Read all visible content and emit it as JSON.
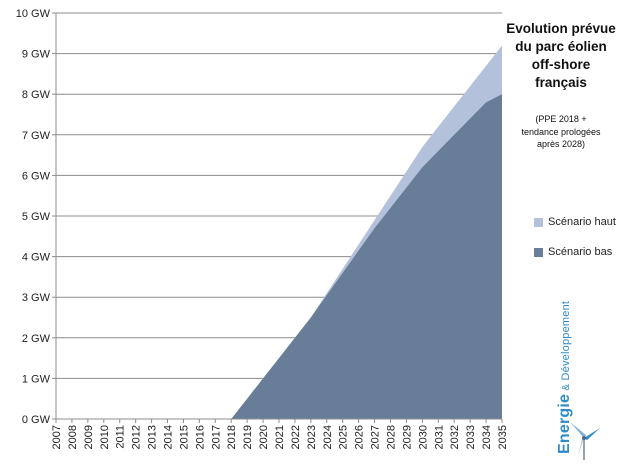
{
  "chart_data": {
    "type": "area",
    "title": [
      "Evolution prévue",
      "du parc éolien",
      "off-shore",
      "français"
    ],
    "subtitle": [
      "(PPE 2018 +",
      "tendance prologées",
      "après 2028)"
    ],
    "x": [
      "2007",
      "2008",
      "2009",
      "2010",
      "2011",
      "2012",
      "2013",
      "2014",
      "2015",
      "2016",
      "2017",
      "2018",
      "2019",
      "2020",
      "2021",
      "2022",
      "2023",
      "2024",
      "2025",
      "2026",
      "2027",
      "2028",
      "2029",
      "2030",
      "2031",
      "2032",
      "2033",
      "2034",
      "2035"
    ],
    "series": [
      {
        "name": "Scénario haut",
        "color": "#b4c1db",
        "values": [
          0,
          0,
          0,
          0,
          0,
          0,
          0,
          0,
          0,
          0,
          0,
          0,
          0.5,
          1.0,
          1.5,
          2.0,
          2.5,
          3.1,
          3.7,
          4.3,
          4.9,
          5.5,
          6.1,
          6.7,
          7.2,
          7.7,
          8.2,
          8.7,
          9.2
        ]
      },
      {
        "name": "Scénario bas",
        "color": "#687d98",
        "values": [
          0,
          0,
          0,
          0,
          0,
          0,
          0,
          0,
          0,
          0,
          0,
          0,
          0.5,
          1.0,
          1.5,
          2.0,
          2.5,
          3.05,
          3.6,
          4.15,
          4.7,
          5.2,
          5.7,
          6.2,
          6.6,
          7.0,
          7.4,
          7.8,
          8.0
        ]
      }
    ],
    "y_ticks": [
      "0 GW",
      "1 GW",
      "2 GW",
      "3 GW",
      "4 GW",
      "5 GW",
      "6 GW",
      "7 GW",
      "8 GW",
      "9 GW",
      "10 GW"
    ],
    "ylim": [
      0,
      10
    ],
    "grid": true,
    "legend": "right"
  },
  "logo": {
    "word": "Energie",
    "amp": "&",
    "rest": "Développement"
  }
}
